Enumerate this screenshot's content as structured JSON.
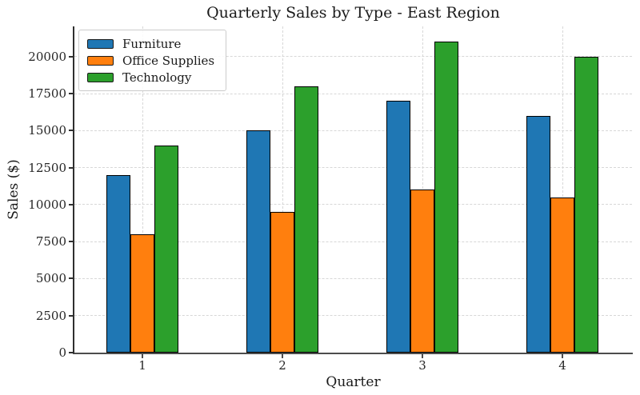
{
  "chart_data": {
    "type": "bar",
    "title": "Quarterly Sales by Type - East Region",
    "xlabel": "Quarter",
    "ylabel": "Sales ($)",
    "categories": [
      "1",
      "2",
      "3",
      "4"
    ],
    "series": [
      {
        "name": "Furniture",
        "color": "#1f77b4",
        "values": [
          12000,
          15000,
          17000,
          16000
        ]
      },
      {
        "name": "Office Supplies",
        "color": "#ff7f0e",
        "values": [
          8000,
          9500,
          11000,
          10500
        ]
      },
      {
        "name": "Technology",
        "color": "#2ca02c",
        "values": [
          14000,
          18000,
          21000,
          20000
        ]
      }
    ],
    "yticks": [
      0,
      2500,
      5000,
      7500,
      10000,
      12500,
      15000,
      17500,
      20000
    ],
    "ylim": [
      0,
      22050
    ],
    "xlim": [
      0.514,
      4.497
    ],
    "bar_width": 0.17,
    "bar_edge_color": "#000000",
    "grid": true,
    "grid_style": "dashed",
    "legend_position": "upper-left"
  }
}
